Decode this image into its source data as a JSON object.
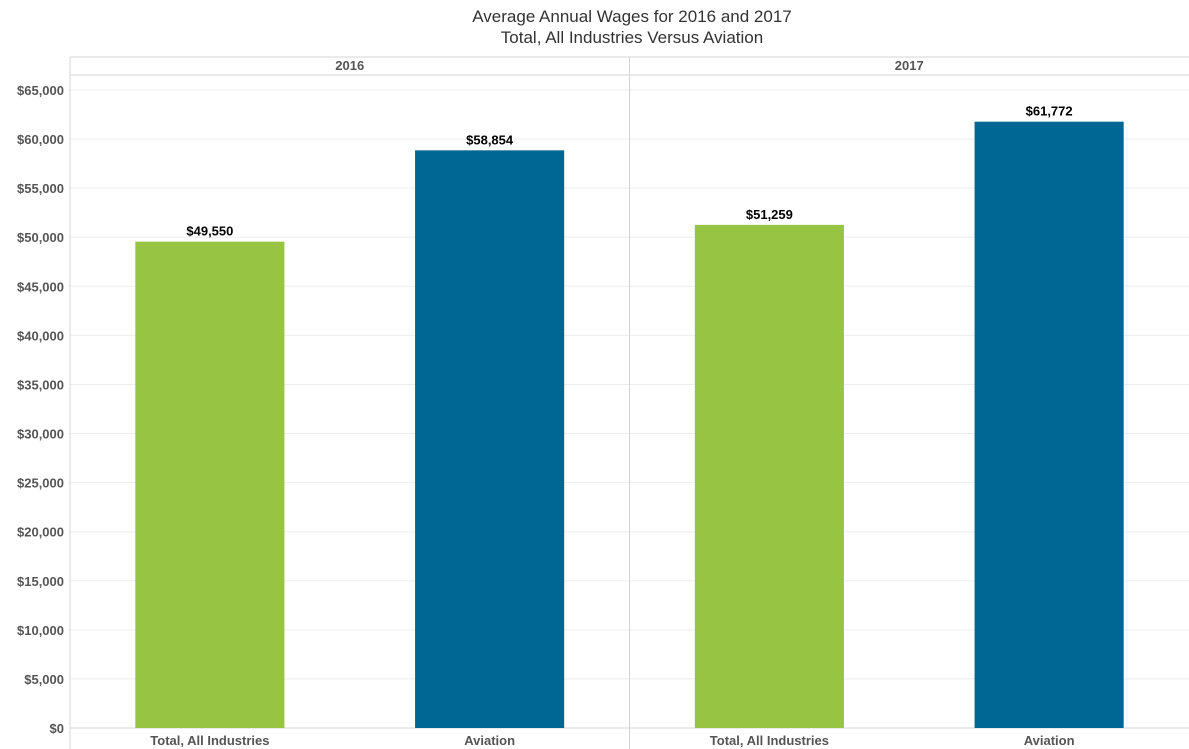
{
  "chart_data": {
    "type": "bar",
    "title": "Average Annual Wages for 2016 and 2017",
    "subtitle": "Total, All Industries Versus Aviation",
    "ylim": [
      0,
      65000
    ],
    "y_ticks": [
      "$0",
      "$5,000",
      "$10,000",
      "$15,000",
      "$20,000",
      "$25,000",
      "$30,000",
      "$35,000",
      "$40,000",
      "$45,000",
      "$50,000",
      "$55,000",
      "$60,000",
      "$65,000"
    ],
    "y_tick_values": [
      0,
      5000,
      10000,
      15000,
      20000,
      25000,
      30000,
      35000,
      40000,
      45000,
      50000,
      55000,
      60000,
      65000
    ],
    "grid": true,
    "legend": "none",
    "panels": [
      {
        "header": "2016",
        "categories": [
          "Total, All Industries",
          "Aviation"
        ],
        "values": [
          49550,
          58854
        ],
        "data_labels": [
          "$49,550",
          "$58,854"
        ]
      },
      {
        "header": "2017",
        "categories": [
          "Total, All Industries",
          "Aviation"
        ],
        "values": [
          51259,
          61772
        ],
        "data_labels": [
          "$51,259",
          "$61,772"
        ]
      }
    ],
    "colors": {
      "Total, All Industries": "#97c543",
      "Aviation": "#006693"
    }
  }
}
